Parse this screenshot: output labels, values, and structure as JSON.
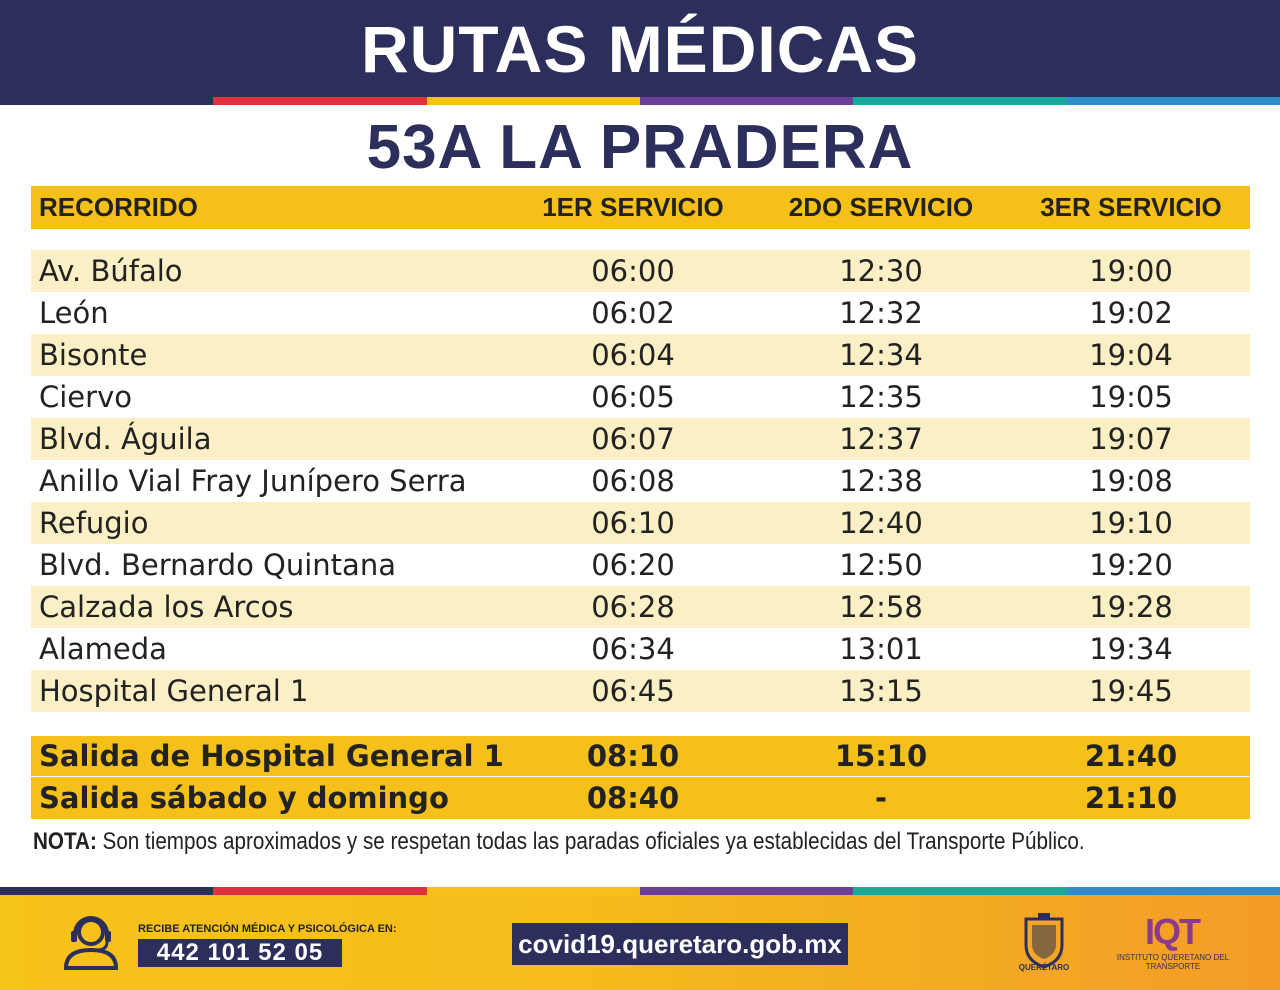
{
  "header": {
    "title": "RUTAS MÉDICAS"
  },
  "stripe_colors": [
    "#2c2f5b",
    "#e0303c",
    "#f5c019",
    "#6a3f99",
    "#19a89b",
    "#2f8ccf"
  ],
  "route": {
    "name": "53A LA PRADERA"
  },
  "table": {
    "columns": [
      "RECORRIDO",
      "1ER SERVICIO",
      "2DO SERVICIO",
      "3ER SERVICIO"
    ],
    "rows": [
      [
        "Av. Búfalo",
        "06:00",
        "12:30",
        "19:00"
      ],
      [
        "León",
        "06:02",
        "12:32",
        "19:02"
      ],
      [
        "Bisonte",
        "06:04",
        "12:34",
        "19:04"
      ],
      [
        "Ciervo",
        "06:05",
        "12:35",
        "19:05"
      ],
      [
        "Blvd. Águila",
        "06:07",
        "12:37",
        "19:07"
      ],
      [
        "Anillo Vial Fray Junípero Serra",
        "06:08",
        "12:38",
        "19:08"
      ],
      [
        "Refugio",
        "06:10",
        "12:40",
        "19:10"
      ],
      [
        "Blvd. Bernardo Quintana",
        "06:20",
        "12:50",
        "19:20"
      ],
      [
        "Calzada los Arcos",
        "06:28",
        "12:58",
        "19:28"
      ],
      [
        "Alameda",
        "06:34",
        "13:01",
        "19:34"
      ],
      [
        "Hospital General 1",
        "06:45",
        "13:15",
        "19:45"
      ]
    ],
    "exits": [
      [
        "Salida de Hospital General 1",
        "08:10",
        "15:10",
        "21:40"
      ],
      [
        "Salida sábado y domingo",
        "08:40",
        "-",
        "21:10"
      ]
    ]
  },
  "note": {
    "label": "NOTA:",
    "text": " Son tiempos aproximados y se respetan todas las paradas oficiales ya establecidas del Transporte Público."
  },
  "footer": {
    "call_label": "RECIBE ATENCIÓN MÉDICA Y PSICOLÓGICA EN:",
    "phone": "442 101 52 05",
    "url": "covid19.queretaro.gob.mx",
    "seal_label": "QUERÉTARO",
    "iqt_logo": "IQT",
    "iqt_name": "INSTITUTO QUERETANO DEL TRANSPORTE",
    "icons": [
      "headset-agent-icon",
      "queretaro-seal-icon"
    ]
  },
  "colors": {
    "navy": "#2c2f5b",
    "yellow": "#f5c019",
    "row_tint": "#fbefc5",
    "iqt_purple": "#8a3a8e"
  }
}
